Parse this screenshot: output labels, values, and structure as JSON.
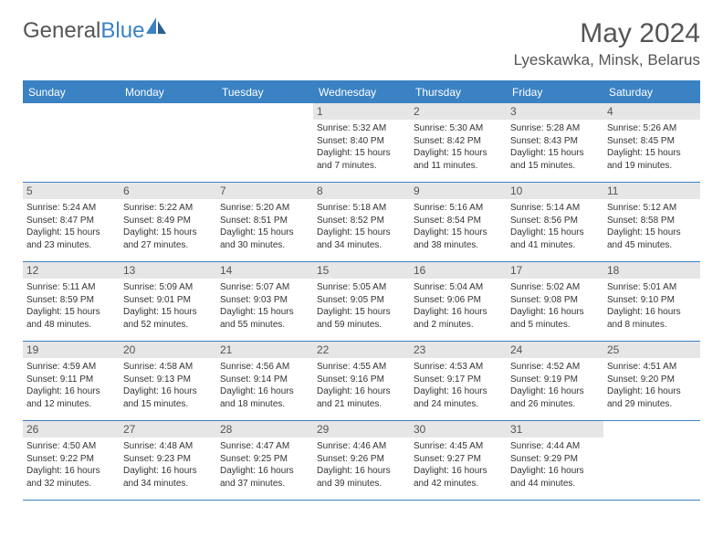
{
  "logo": {
    "text_gray": "General",
    "text_blue": "Blue"
  },
  "title": "May 2024",
  "location": "Lyeskawka, Minsk, Belarus",
  "colors": {
    "accent": "#3b82c4",
    "header_bg": "#3b82c4",
    "daynum_bg": "#e6e6e6",
    "text_gray": "#555555",
    "text_body": "#333333",
    "border": "#3b82c4"
  },
  "weekdays": [
    "Sunday",
    "Monday",
    "Tuesday",
    "Wednesday",
    "Thursday",
    "Friday",
    "Saturday"
  ],
  "weeks": [
    [
      {
        "n": "",
        "sunrise": "",
        "sunset": "",
        "daylight": ""
      },
      {
        "n": "",
        "sunrise": "",
        "sunset": "",
        "daylight": ""
      },
      {
        "n": "",
        "sunrise": "",
        "sunset": "",
        "daylight": ""
      },
      {
        "n": "1",
        "sunrise": "Sunrise: 5:32 AM",
        "sunset": "Sunset: 8:40 PM",
        "daylight": "Daylight: 15 hours and 7 minutes."
      },
      {
        "n": "2",
        "sunrise": "Sunrise: 5:30 AM",
        "sunset": "Sunset: 8:42 PM",
        "daylight": "Daylight: 15 hours and 11 minutes."
      },
      {
        "n": "3",
        "sunrise": "Sunrise: 5:28 AM",
        "sunset": "Sunset: 8:43 PM",
        "daylight": "Daylight: 15 hours and 15 minutes."
      },
      {
        "n": "4",
        "sunrise": "Sunrise: 5:26 AM",
        "sunset": "Sunset: 8:45 PM",
        "daylight": "Daylight: 15 hours and 19 minutes."
      }
    ],
    [
      {
        "n": "5",
        "sunrise": "Sunrise: 5:24 AM",
        "sunset": "Sunset: 8:47 PM",
        "daylight": "Daylight: 15 hours and 23 minutes."
      },
      {
        "n": "6",
        "sunrise": "Sunrise: 5:22 AM",
        "sunset": "Sunset: 8:49 PM",
        "daylight": "Daylight: 15 hours and 27 minutes."
      },
      {
        "n": "7",
        "sunrise": "Sunrise: 5:20 AM",
        "sunset": "Sunset: 8:51 PM",
        "daylight": "Daylight: 15 hours and 30 minutes."
      },
      {
        "n": "8",
        "sunrise": "Sunrise: 5:18 AM",
        "sunset": "Sunset: 8:52 PM",
        "daylight": "Daylight: 15 hours and 34 minutes."
      },
      {
        "n": "9",
        "sunrise": "Sunrise: 5:16 AM",
        "sunset": "Sunset: 8:54 PM",
        "daylight": "Daylight: 15 hours and 38 minutes."
      },
      {
        "n": "10",
        "sunrise": "Sunrise: 5:14 AM",
        "sunset": "Sunset: 8:56 PM",
        "daylight": "Daylight: 15 hours and 41 minutes."
      },
      {
        "n": "11",
        "sunrise": "Sunrise: 5:12 AM",
        "sunset": "Sunset: 8:58 PM",
        "daylight": "Daylight: 15 hours and 45 minutes."
      }
    ],
    [
      {
        "n": "12",
        "sunrise": "Sunrise: 5:11 AM",
        "sunset": "Sunset: 8:59 PM",
        "daylight": "Daylight: 15 hours and 48 minutes."
      },
      {
        "n": "13",
        "sunrise": "Sunrise: 5:09 AM",
        "sunset": "Sunset: 9:01 PM",
        "daylight": "Daylight: 15 hours and 52 minutes."
      },
      {
        "n": "14",
        "sunrise": "Sunrise: 5:07 AM",
        "sunset": "Sunset: 9:03 PM",
        "daylight": "Daylight: 15 hours and 55 minutes."
      },
      {
        "n": "15",
        "sunrise": "Sunrise: 5:05 AM",
        "sunset": "Sunset: 9:05 PM",
        "daylight": "Daylight: 15 hours and 59 minutes."
      },
      {
        "n": "16",
        "sunrise": "Sunrise: 5:04 AM",
        "sunset": "Sunset: 9:06 PM",
        "daylight": "Daylight: 16 hours and 2 minutes."
      },
      {
        "n": "17",
        "sunrise": "Sunrise: 5:02 AM",
        "sunset": "Sunset: 9:08 PM",
        "daylight": "Daylight: 16 hours and 5 minutes."
      },
      {
        "n": "18",
        "sunrise": "Sunrise: 5:01 AM",
        "sunset": "Sunset: 9:10 PM",
        "daylight": "Daylight: 16 hours and 8 minutes."
      }
    ],
    [
      {
        "n": "19",
        "sunrise": "Sunrise: 4:59 AM",
        "sunset": "Sunset: 9:11 PM",
        "daylight": "Daylight: 16 hours and 12 minutes."
      },
      {
        "n": "20",
        "sunrise": "Sunrise: 4:58 AM",
        "sunset": "Sunset: 9:13 PM",
        "daylight": "Daylight: 16 hours and 15 minutes."
      },
      {
        "n": "21",
        "sunrise": "Sunrise: 4:56 AM",
        "sunset": "Sunset: 9:14 PM",
        "daylight": "Daylight: 16 hours and 18 minutes."
      },
      {
        "n": "22",
        "sunrise": "Sunrise: 4:55 AM",
        "sunset": "Sunset: 9:16 PM",
        "daylight": "Daylight: 16 hours and 21 minutes."
      },
      {
        "n": "23",
        "sunrise": "Sunrise: 4:53 AM",
        "sunset": "Sunset: 9:17 PM",
        "daylight": "Daylight: 16 hours and 24 minutes."
      },
      {
        "n": "24",
        "sunrise": "Sunrise: 4:52 AM",
        "sunset": "Sunset: 9:19 PM",
        "daylight": "Daylight: 16 hours and 26 minutes."
      },
      {
        "n": "25",
        "sunrise": "Sunrise: 4:51 AM",
        "sunset": "Sunset: 9:20 PM",
        "daylight": "Daylight: 16 hours and 29 minutes."
      }
    ],
    [
      {
        "n": "26",
        "sunrise": "Sunrise: 4:50 AM",
        "sunset": "Sunset: 9:22 PM",
        "daylight": "Daylight: 16 hours and 32 minutes."
      },
      {
        "n": "27",
        "sunrise": "Sunrise: 4:48 AM",
        "sunset": "Sunset: 9:23 PM",
        "daylight": "Daylight: 16 hours and 34 minutes."
      },
      {
        "n": "28",
        "sunrise": "Sunrise: 4:47 AM",
        "sunset": "Sunset: 9:25 PM",
        "daylight": "Daylight: 16 hours and 37 minutes."
      },
      {
        "n": "29",
        "sunrise": "Sunrise: 4:46 AM",
        "sunset": "Sunset: 9:26 PM",
        "daylight": "Daylight: 16 hours and 39 minutes."
      },
      {
        "n": "30",
        "sunrise": "Sunrise: 4:45 AM",
        "sunset": "Sunset: 9:27 PM",
        "daylight": "Daylight: 16 hours and 42 minutes."
      },
      {
        "n": "31",
        "sunrise": "Sunrise: 4:44 AM",
        "sunset": "Sunset: 9:29 PM",
        "daylight": "Daylight: 16 hours and 44 minutes."
      },
      {
        "n": "",
        "sunrise": "",
        "sunset": "",
        "daylight": ""
      }
    ]
  ]
}
